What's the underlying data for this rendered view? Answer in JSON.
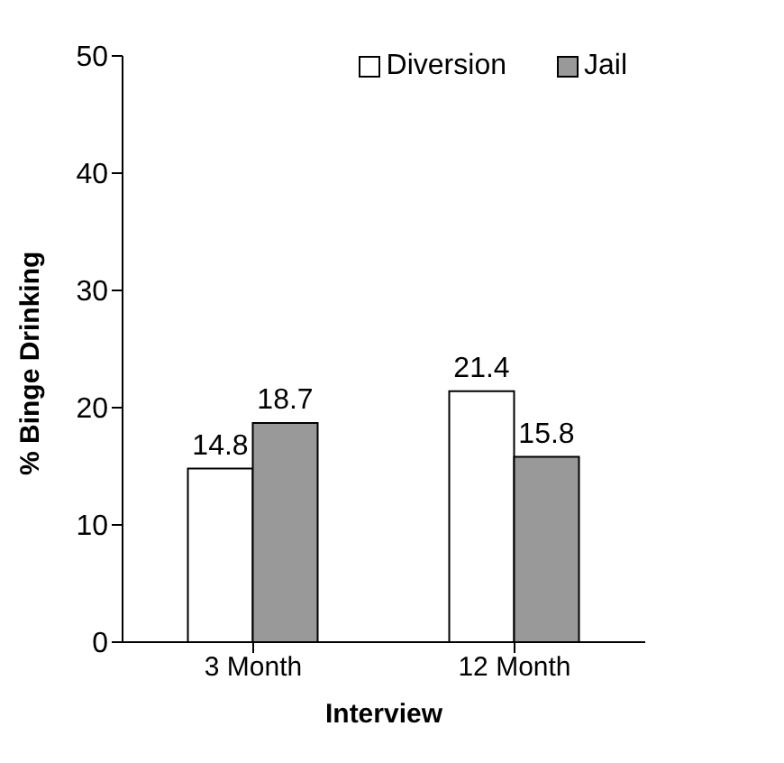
{
  "chart_data": {
    "type": "bar",
    "xlabel": "Interview",
    "ylabel": "% Binge Drinking",
    "categories": [
      "3 Month",
      "12 Month"
    ],
    "series": [
      {
        "name": "Diversion",
        "color": "#ffffff",
        "values": [
          14.8,
          21.4
        ]
      },
      {
        "name": "Jail",
        "color": "#999999",
        "values": [
          18.7,
          15.8
        ]
      }
    ],
    "ylim": [
      0,
      50
    ],
    "yticks": [
      0,
      10,
      20,
      30,
      40,
      50
    ],
    "grid": false,
    "legend": "top right",
    "data_labels": true
  }
}
